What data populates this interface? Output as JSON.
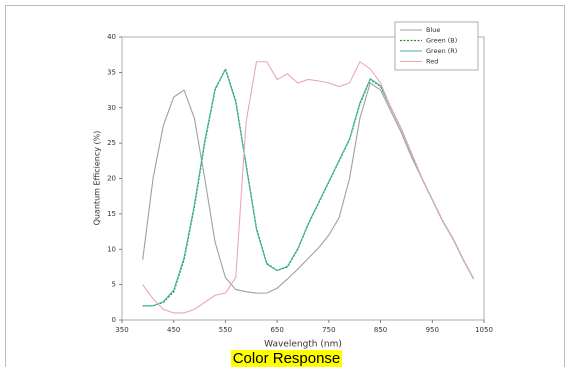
{
  "chart_data": {
    "type": "line",
    "caption": "Color Response",
    "x_label": "Wavelength (nm)",
    "y_label": "Quantum Efficiency (%)",
    "x": [
      390,
      410,
      430,
      450,
      470,
      490,
      510,
      530,
      550,
      570,
      590,
      610,
      630,
      650,
      670,
      690,
      710,
      730,
      750,
      770,
      790,
      810,
      830,
      850,
      870,
      890,
      910,
      930,
      950,
      970,
      990,
      1010,
      1030
    ],
    "series": [
      {
        "name": "Blue",
        "color": "#a0a0a0",
        "dash": false,
        "values": [
          8.5,
          20,
          27.5,
          31.5,
          32.5,
          28.5,
          20,
          11,
          6,
          4.3,
          4,
          3.8,
          3.8,
          4.5,
          5.8,
          7.2,
          8.7,
          10.2,
          12,
          14.5,
          20,
          28.5,
          33.5,
          32.5,
          29.5,
          26.5,
          23,
          20,
          17,
          14,
          11.5,
          8.5,
          5.8
        ]
      },
      {
        "name": "Green (B)",
        "color": "#2e8b3e",
        "dash": true,
        "values": [
          2,
          2,
          2.5,
          4,
          8.5,
          16,
          25,
          32.5,
          35.5,
          31,
          22,
          13,
          8,
          7,
          7.5,
          10,
          13.5,
          16.5,
          19.5,
          22.5,
          25.5,
          30.5,
          34,
          33,
          30,
          27,
          23.5,
          20,
          17,
          14,
          11.5,
          8.5,
          5.8
        ]
      },
      {
        "name": "Green (R)",
        "color": "#3fb5a5",
        "dash": false,
        "values": [
          2,
          2,
          2.6,
          4.2,
          8.8,
          16.3,
          25.3,
          32.7,
          35.4,
          30.8,
          21.8,
          12.8,
          7.9,
          7,
          7.6,
          10.1,
          13.6,
          16.6,
          19.6,
          22.6,
          25.6,
          30.7,
          34.1,
          33.1,
          30,
          27,
          23.5,
          20,
          17,
          14,
          11.5,
          8.5,
          5.8
        ]
      },
      {
        "name": "Red",
        "color": "#e8a8b8",
        "dash": false,
        "values": [
          5,
          3,
          1.5,
          1,
          1,
          1.5,
          2.5,
          3.5,
          3.8,
          6,
          28,
          36.5,
          36.5,
          34,
          34.8,
          33.5,
          34,
          33.8,
          33.5,
          33,
          33.5,
          36.5,
          35.5,
          33.5,
          30,
          27,
          23.5,
          20,
          17,
          14,
          11.5,
          8.5,
          5.8
        ]
      }
    ],
    "xlim": [
      350,
      1050
    ],
    "xticks": [
      350,
      450,
      550,
      650,
      750,
      850,
      950,
      1050
    ],
    "ylim": [
      0,
      40
    ],
    "yticks": [
      0,
      5,
      10,
      15,
      20,
      25,
      30,
      35,
      40
    ],
    "legend": "upper right"
  }
}
